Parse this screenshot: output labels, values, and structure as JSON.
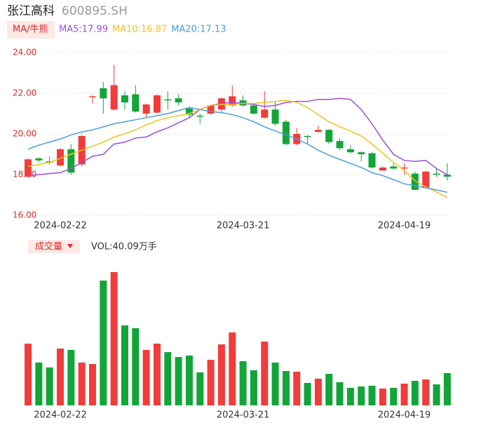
{
  "chart_data": {
    "type": "candlestick",
    "title": "张江高科",
    "subtitle": "600895.SH",
    "legend_label": "MA/牛熊",
    "up_color": "#f23b3b",
    "down_color": "#12a538",
    "grid": true,
    "ylim": [
      16,
      24
    ],
    "yticks": [
      {
        "value": 24,
        "label": "24.00"
      },
      {
        "value": 22,
        "label": "22.00"
      },
      {
        "value": 20,
        "label": "20.00"
      },
      {
        "value": 18,
        "label": "18.00"
      },
      {
        "value": 16,
        "label": "16.00"
      }
    ],
    "categories": [
      null,
      null,
      null,
      "2024-02-22",
      null,
      null,
      null,
      null,
      null,
      null,
      null,
      null,
      null,
      null,
      null,
      null,
      null,
      null,
      null,
      null,
      "2024-03-21",
      null,
      null,
      null,
      null,
      null,
      null,
      null,
      null,
      null,
      null,
      null,
      null,
      null,
      null,
      "2024-04-19",
      null,
      null,
      null,
      null
    ],
    "open": [
      17.9,
      18.8,
      18.65,
      18.45,
      19.25,
      18.5,
      21.8,
      22.25,
      21.2,
      21.9,
      21.95,
      21.0,
      21.05,
      21.7,
      21.75,
      21.25,
      20.9,
      21.0,
      21.2,
      21.4,
      21.65,
      21.4,
      20.8,
      21.2,
      20.6,
      19.5,
      19.9,
      20.1,
      20.2,
      19.65,
      19.25,
      19.1,
      19.05,
      18.2,
      18.4,
      18.3,
      18.05,
      17.35,
      18.05,
      18.0
    ],
    "close": [
      18.75,
      18.7,
      18.6,
      19.25,
      18.1,
      19.9,
      21.85,
      21.75,
      22.4,
      21.55,
      21.1,
      21.45,
      21.9,
      21.65,
      21.55,
      20.95,
      20.85,
      21.4,
      21.75,
      21.85,
      21.4,
      21.0,
      21.2,
      20.5,
      19.5,
      20.0,
      19.85,
      20.2,
      19.6,
      19.3,
      19.1,
      19.0,
      18.35,
      18.35,
      18.3,
      18.35,
      17.25,
      18.15,
      18.0,
      17.9
    ],
    "high": [
      18.8,
      18.85,
      18.9,
      19.3,
      19.5,
      19.95,
      21.9,
      22.55,
      23.4,
      22.1,
      22.4,
      21.5,
      21.95,
      22.1,
      21.95,
      21.35,
      21.0,
      21.45,
      21.8,
      22.4,
      21.9,
      21.5,
      22.1,
      21.6,
      20.7,
      20.3,
      19.95,
      20.4,
      20.25,
      19.8,
      19.45,
      19.15,
      19.1,
      18.4,
      18.55,
      18.55,
      18.15,
      18.2,
      18.3,
      18.55
    ],
    "low": [
      17.85,
      18.6,
      18.5,
      18.4,
      18.0,
      18.4,
      21.5,
      21.0,
      21.15,
      21.2,
      21.05,
      20.8,
      21.0,
      21.2,
      21.4,
      20.8,
      20.5,
      20.95,
      21.1,
      21.35,
      21.35,
      20.95,
      20.75,
      20.4,
      19.45,
      19.45,
      19.5,
      20.05,
      19.5,
      19.2,
      19.05,
      18.65,
      18.3,
      18.2,
      18.25,
      18.0,
      17.25,
      17.35,
      17.9,
      17.7
    ],
    "series": [
      {
        "name": "MA5:17.99",
        "color": "#9a4ee0",
        "values": [
          17.95,
          18.0,
          18.05,
          18.1,
          18.3,
          18.6,
          18.9,
          19.0,
          19.5,
          19.6,
          19.8,
          19.85,
          20.1,
          20.3,
          20.55,
          20.8,
          21.2,
          21.4,
          21.5,
          21.55,
          21.5,
          21.45,
          21.35,
          21.4,
          21.55,
          21.6,
          21.6,
          21.7,
          21.7,
          21.75,
          21.7,
          21.2,
          20.5,
          19.7,
          19.0,
          18.7,
          18.65,
          18.7,
          18.3,
          17.99
        ]
      },
      {
        "name": "MA10:16.87",
        "color": "#f3c21d",
        "values": [
          18.4,
          18.5,
          18.6,
          18.8,
          19.0,
          19.2,
          19.4,
          19.6,
          19.85,
          20.0,
          20.2,
          20.45,
          20.65,
          20.8,
          20.9,
          21.0,
          21.2,
          21.4,
          21.45,
          21.45,
          21.5,
          21.5,
          21.55,
          21.6,
          21.65,
          21.55,
          21.3,
          20.95,
          20.6,
          20.35,
          20.15,
          19.9,
          19.5,
          19.05,
          18.6,
          18.2,
          17.7,
          17.4,
          17.15,
          16.87
        ]
      },
      {
        "name": "MA20:17.13",
        "color": "#4a9de6",
        "values": [
          19.25,
          19.45,
          19.6,
          19.75,
          19.95,
          20.1,
          20.2,
          20.35,
          20.5,
          20.6,
          20.7,
          20.8,
          20.9,
          21.0,
          21.15,
          21.3,
          21.2,
          21.1,
          21.05,
          20.95,
          20.8,
          20.6,
          20.35,
          20.15,
          19.95,
          19.75,
          19.5,
          19.2,
          18.95,
          18.75,
          18.55,
          18.35,
          18.1,
          17.95,
          17.75,
          17.55,
          17.45,
          17.35,
          17.25,
          17.13
        ]
      }
    ],
    "volume": {
      "label": "成交量",
      "name": "VOL:40.09万手",
      "values": [
        76.7,
        53.2,
        47.1,
        70.6,
        68.9,
        53.2,
        51.4,
        155.1,
        165.6,
        99.4,
        95.9,
        68.9,
        76.7,
        66.2,
        60.1,
        61.9,
        41.0,
        56.6,
        75.8,
        90.6,
        54.9,
        43.6,
        79.3,
        53.2,
        42.7,
        41.8,
        27.9,
        33.1,
        39.2,
        28.8,
        21.8,
        23.5,
        24.4,
        20.9,
        21.8,
        27.0,
        30.5,
        32.2,
        26.1,
        40.09
      ]
    }
  }
}
